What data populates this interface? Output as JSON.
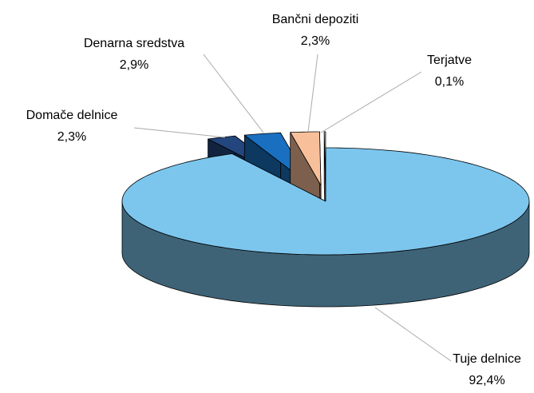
{
  "chart_data": {
    "type": "pie3d",
    "categories": [
      "Tuje delnice",
      "Domače delnice",
      "Denarna sredstva",
      "Bančni depoziti",
      "Terjatve"
    ],
    "values": [
      92.4,
      2.3,
      2.9,
      2.3,
      0.1
    ],
    "value_labels": [
      "92,4%",
      "2,3%",
      "2,9%",
      "2,3%",
      "0,1%"
    ],
    "colors": [
      "#7cc6ee",
      "#23467e",
      "#1a70c0",
      "#f8c09a",
      "#ffffff"
    ]
  }
}
